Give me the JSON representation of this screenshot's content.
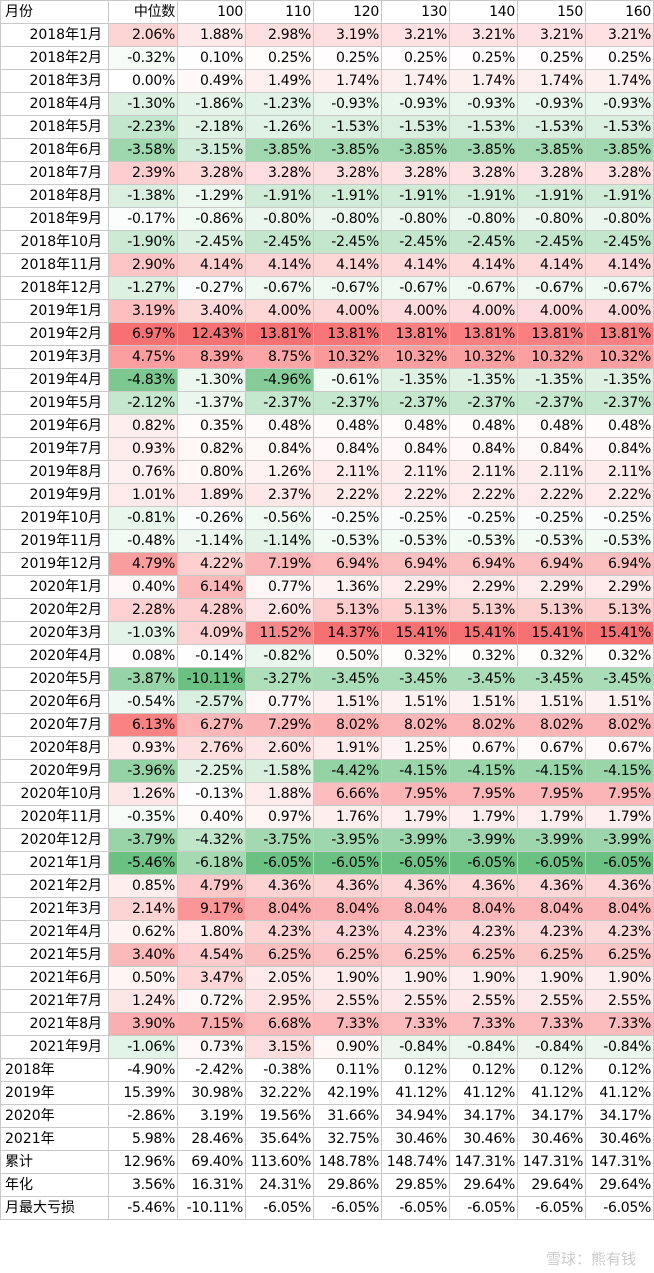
{
  "header": [
    "月份",
    "中位数",
    "100",
    "110",
    "120",
    "130",
    "140",
    "150",
    "160"
  ],
  "colors": {
    "positive": "#f8696b",
    "negative": "#63be7b",
    "neutral": "#ffffff",
    "grid": "#c9c9c9"
  },
  "monthly_rows": [
    [
      "2018年1月",
      "2.06%",
      "1.88%",
      "2.98%",
      "3.19%",
      "3.21%",
      "3.21%",
      "3.21%",
      "3.21%"
    ],
    [
      "2018年2月",
      "-0.32%",
      "0.10%",
      "0.25%",
      "0.25%",
      "0.25%",
      "0.25%",
      "0.25%",
      "0.25%"
    ],
    [
      "2018年3月",
      "0.00%",
      "0.49%",
      "1.49%",
      "1.74%",
      "1.74%",
      "1.74%",
      "1.74%",
      "1.74%"
    ],
    [
      "2018年4月",
      "-1.30%",
      "-1.86%",
      "-1.23%",
      "-0.93%",
      "-0.93%",
      "-0.93%",
      "-0.93%",
      "-0.93%"
    ],
    [
      "2018年5月",
      "-2.23%",
      "-2.18%",
      "-1.26%",
      "-1.53%",
      "-1.53%",
      "-1.53%",
      "-1.53%",
      "-1.53%"
    ],
    [
      "2018年6月",
      "-3.58%",
      "-3.15%",
      "-3.85%",
      "-3.85%",
      "-3.85%",
      "-3.85%",
      "-3.85%",
      "-3.85%"
    ],
    [
      "2018年7月",
      "2.39%",
      "3.28%",
      "3.28%",
      "3.28%",
      "3.28%",
      "3.28%",
      "3.28%",
      "3.28%"
    ],
    [
      "2018年8月",
      "-1.38%",
      "-1.29%",
      "-1.91%",
      "-1.91%",
      "-1.91%",
      "-1.91%",
      "-1.91%",
      "-1.91%"
    ],
    [
      "2018年9月",
      "-0.17%",
      "-0.86%",
      "-0.80%",
      "-0.80%",
      "-0.80%",
      "-0.80%",
      "-0.80%",
      "-0.80%"
    ],
    [
      "2018年10月",
      "-1.90%",
      "-2.45%",
      "-2.45%",
      "-2.45%",
      "-2.45%",
      "-2.45%",
      "-2.45%",
      "-2.45%"
    ],
    [
      "2018年11月",
      "2.90%",
      "4.14%",
      "4.14%",
      "4.14%",
      "4.14%",
      "4.14%",
      "4.14%",
      "4.14%"
    ],
    [
      "2018年12月",
      "-1.27%",
      "-0.27%",
      "-0.67%",
      "-0.67%",
      "-0.67%",
      "-0.67%",
      "-0.67%",
      "-0.67%"
    ],
    [
      "2019年1月",
      "3.19%",
      "3.40%",
      "4.00%",
      "4.00%",
      "4.00%",
      "4.00%",
      "4.00%",
      "4.00%"
    ],
    [
      "2019年2月",
      "6.97%",
      "12.43%",
      "13.81%",
      "13.81%",
      "13.81%",
      "13.81%",
      "13.81%",
      "13.81%"
    ],
    [
      "2019年3月",
      "4.75%",
      "8.39%",
      "8.75%",
      "10.32%",
      "10.32%",
      "10.32%",
      "10.32%",
      "10.32%"
    ],
    [
      "2019年4月",
      "-4.83%",
      "-1.30%",
      "-4.96%",
      "-0.61%",
      "-1.35%",
      "-1.35%",
      "-1.35%",
      "-1.35%"
    ],
    [
      "2019年5月",
      "-2.12%",
      "-1.37%",
      "-2.37%",
      "-2.37%",
      "-2.37%",
      "-2.37%",
      "-2.37%",
      "-2.37%"
    ],
    [
      "2019年6月",
      "0.82%",
      "0.35%",
      "0.48%",
      "0.48%",
      "0.48%",
      "0.48%",
      "0.48%",
      "0.48%"
    ],
    [
      "2019年7月",
      "0.93%",
      "0.82%",
      "0.84%",
      "0.84%",
      "0.84%",
      "0.84%",
      "0.84%",
      "0.84%"
    ],
    [
      "2019年8月",
      "0.76%",
      "0.80%",
      "1.26%",
      "2.11%",
      "2.11%",
      "2.11%",
      "2.11%",
      "2.11%"
    ],
    [
      "2019年9月",
      "1.01%",
      "1.89%",
      "2.37%",
      "2.22%",
      "2.22%",
      "2.22%",
      "2.22%",
      "2.22%"
    ],
    [
      "2019年10月",
      "-0.81%",
      "-0.26%",
      "-0.56%",
      "-0.25%",
      "-0.25%",
      "-0.25%",
      "-0.25%",
      "-0.25%"
    ],
    [
      "2019年11月",
      "-0.48%",
      "-1.14%",
      "-1.14%",
      "-0.53%",
      "-0.53%",
      "-0.53%",
      "-0.53%",
      "-0.53%"
    ],
    [
      "2019年12月",
      "4.79%",
      "4.22%",
      "7.19%",
      "6.94%",
      "6.94%",
      "6.94%",
      "6.94%",
      "6.94%"
    ],
    [
      "2020年1月",
      "0.40%",
      "6.14%",
      "0.77%",
      "1.36%",
      "2.29%",
      "2.29%",
      "2.29%",
      "2.29%"
    ],
    [
      "2020年2月",
      "2.28%",
      "4.28%",
      "2.60%",
      "5.13%",
      "5.13%",
      "5.13%",
      "5.13%",
      "5.13%"
    ],
    [
      "2020年3月",
      "-1.03%",
      "4.09%",
      "11.52%",
      "14.37%",
      "15.41%",
      "15.41%",
      "15.41%",
      "15.41%"
    ],
    [
      "2020年4月",
      "0.08%",
      "-0.14%",
      "-0.82%",
      "0.50%",
      "0.32%",
      "0.32%",
      "0.32%",
      "0.32%"
    ],
    [
      "2020年5月",
      "-3.87%",
      "-10.11%",
      "-3.27%",
      "-3.45%",
      "-3.45%",
      "-3.45%",
      "-3.45%",
      "-3.45%"
    ],
    [
      "2020年6月",
      "-0.54%",
      "-2.57%",
      "0.77%",
      "1.51%",
      "1.51%",
      "1.51%",
      "1.51%",
      "1.51%"
    ],
    [
      "2020年7月",
      "6.13%",
      "6.27%",
      "7.29%",
      "8.02%",
      "8.02%",
      "8.02%",
      "8.02%",
      "8.02%"
    ],
    [
      "2020年8月",
      "0.93%",
      "2.76%",
      "2.60%",
      "1.91%",
      "1.25%",
      "0.67%",
      "0.67%",
      "0.67%"
    ],
    [
      "2020年9月",
      "-3.96%",
      "-2.25%",
      "-1.58%",
      "-4.42%",
      "-4.15%",
      "-4.15%",
      "-4.15%",
      "-4.15%"
    ],
    [
      "2020年10月",
      "1.26%",
      "-0.13%",
      "1.88%",
      "6.66%",
      "7.95%",
      "7.95%",
      "7.95%",
      "7.95%"
    ],
    [
      "2020年11月",
      "-0.35%",
      "0.40%",
      "0.97%",
      "1.76%",
      "1.79%",
      "1.79%",
      "1.79%",
      "1.79%"
    ],
    [
      "2020年12月",
      "-3.79%",
      "-4.32%",
      "-3.75%",
      "-3.95%",
      "-3.99%",
      "-3.99%",
      "-3.99%",
      "-3.99%"
    ],
    [
      "2021年1月",
      "-5.46%",
      "-6.18%",
      "-6.05%",
      "-6.05%",
      "-6.05%",
      "-6.05%",
      "-6.05%",
      "-6.05%"
    ],
    [
      "2021年2月",
      "0.85%",
      "4.79%",
      "4.36%",
      "4.36%",
      "4.36%",
      "4.36%",
      "4.36%",
      "4.36%"
    ],
    [
      "2021年3月",
      "2.14%",
      "9.17%",
      "8.04%",
      "8.04%",
      "8.04%",
      "8.04%",
      "8.04%",
      "8.04%"
    ],
    [
      "2021年4月",
      "0.62%",
      "1.80%",
      "4.23%",
      "4.23%",
      "4.23%",
      "4.23%",
      "4.23%",
      "4.23%"
    ],
    [
      "2021年5月",
      "3.40%",
      "4.54%",
      "6.25%",
      "6.25%",
      "6.25%",
      "6.25%",
      "6.25%",
      "6.25%"
    ],
    [
      "2021年6月",
      "0.50%",
      "3.47%",
      "2.05%",
      "1.90%",
      "1.90%",
      "1.90%",
      "1.90%",
      "1.90%"
    ],
    [
      "2021年7月",
      "1.24%",
      "0.72%",
      "2.95%",
      "2.55%",
      "2.55%",
      "2.55%",
      "2.55%",
      "2.55%"
    ],
    [
      "2021年8月",
      "3.90%",
      "7.15%",
      "6.68%",
      "7.33%",
      "7.33%",
      "7.33%",
      "7.33%",
      "7.33%"
    ],
    [
      "2021年9月",
      "-1.06%",
      "0.73%",
      "3.15%",
      "0.90%",
      "-0.84%",
      "-0.84%",
      "-0.84%",
      "-0.84%"
    ]
  ],
  "summary_rows": [
    [
      "2018年",
      "-4.90%",
      "-2.42%",
      "-0.38%",
      "0.11%",
      "0.12%",
      "0.12%",
      "0.12%",
      "0.12%"
    ],
    [
      "2019年",
      "15.39%",
      "30.98%",
      "32.22%",
      "42.19%",
      "41.12%",
      "41.12%",
      "41.12%",
      "41.12%"
    ],
    [
      "2020年",
      "-2.86%",
      "3.19%",
      "19.56%",
      "31.66%",
      "34.94%",
      "34.17%",
      "34.17%",
      "34.17%"
    ],
    [
      "2021年",
      "5.98%",
      "28.46%",
      "35.64%",
      "32.75%",
      "30.46%",
      "30.46%",
      "30.46%",
      "30.46%"
    ],
    [
      "累计",
      "12.96%",
      "69.40%",
      "113.60%",
      "148.78%",
      "148.74%",
      "147.31%",
      "147.31%",
      "147.31%"
    ],
    [
      "年化",
      "3.56%",
      "16.31%",
      "24.31%",
      "29.86%",
      "29.85%",
      "29.64%",
      "29.64%",
      "29.64%"
    ],
    [
      "月最大亏损",
      "-5.46%",
      "-10.11%",
      "-6.05%",
      "-6.05%",
      "-6.05%",
      "-6.05%",
      "-6.05%",
      "-6.05%"
    ]
  ],
  "watermark": "雪球：熊有钱"
}
